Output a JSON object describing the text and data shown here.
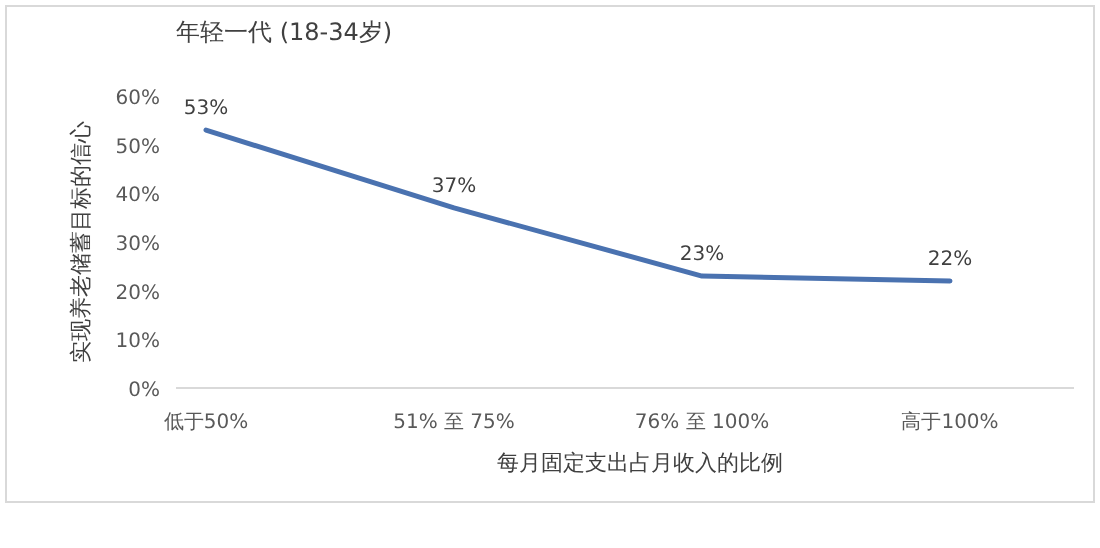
{
  "chart_data": {
    "type": "line",
    "title": "年轻一代 (18-34岁)",
    "xlabel": "每月固定支出占月收入的比例",
    "ylabel": "实现养老储蓄目标的信心",
    "categories": [
      "低于50%",
      "51% 至 75%",
      "76% 至 100%",
      "高于100%"
    ],
    "series": [
      {
        "color": "#4a72b0",
        "values": [
          53,
          37,
          23,
          22
        ],
        "value_labels": [
          "53%",
          "37%",
          "23%",
          "22%"
        ]
      }
    ],
    "ylim": [
      0,
      60
    ],
    "yticks": [
      {
        "value": 0,
        "label": "0%"
      },
      {
        "value": 10,
        "label": "10%"
      },
      {
        "value": 20,
        "label": "20%"
      },
      {
        "value": 30,
        "label": "30%"
      },
      {
        "value": 40,
        "label": "40%"
      },
      {
        "value": 50,
        "label": "50%"
      },
      {
        "value": 60,
        "label": "60%"
      }
    ],
    "grid": false,
    "marker": "none",
    "line_style": "solid"
  }
}
